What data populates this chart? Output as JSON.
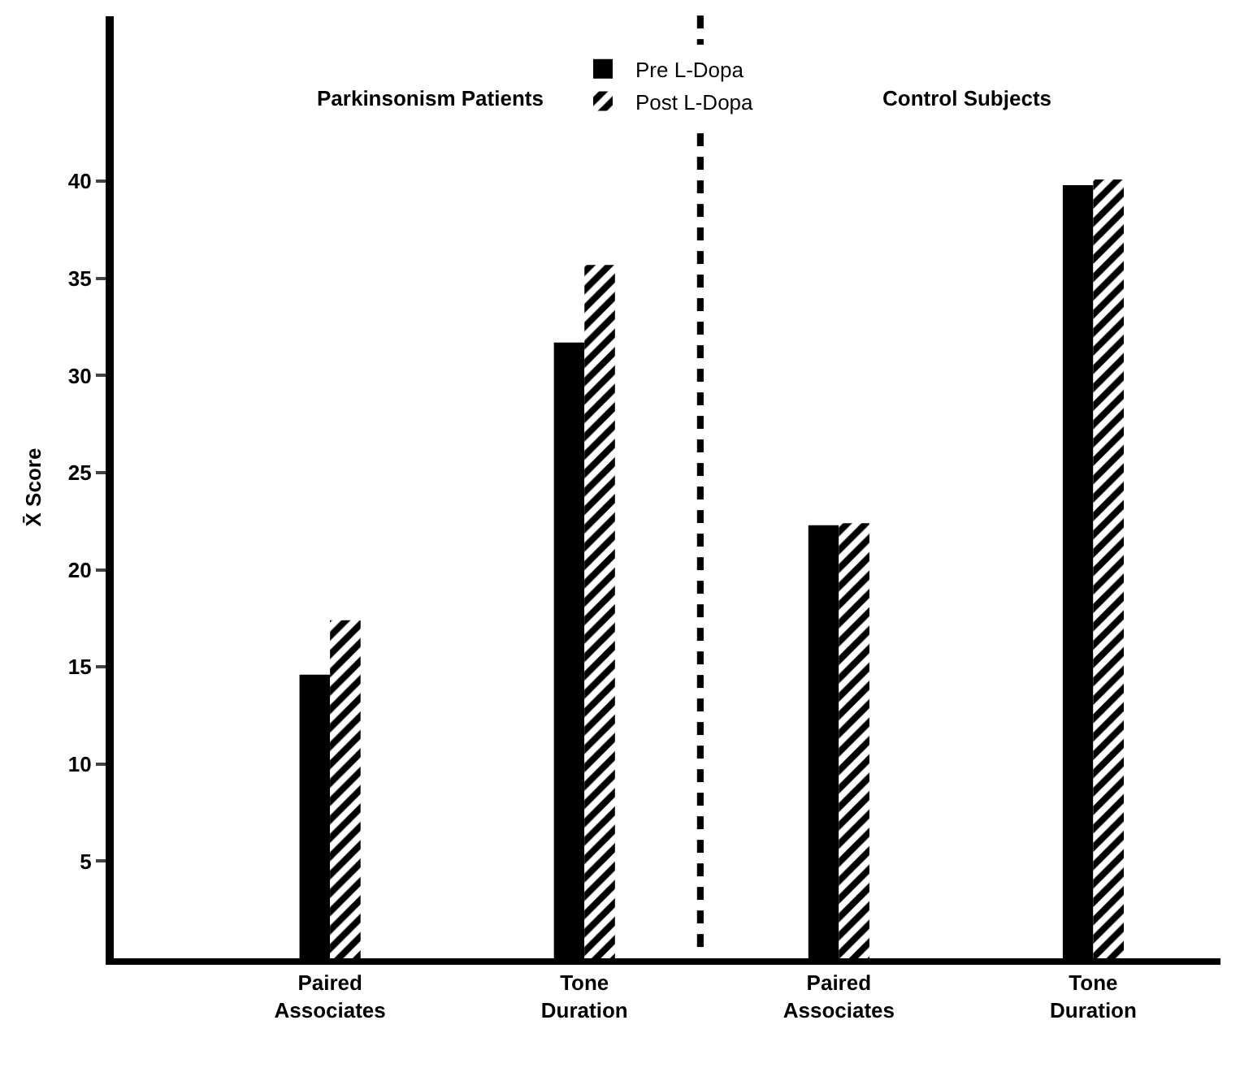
{
  "chart_data": {
    "type": "bar",
    "ylabel": "X̄ Score",
    "categories": [
      "Paired Associates",
      "Tone Duration",
      "Paired Associates",
      "Tone Duration"
    ],
    "series": [
      {
        "name": "Pre L-Dopa",
        "color": "#000000",
        "values": [
          14.6,
          31.7,
          22.3,
          39.8
        ]
      },
      {
        "name": "Post L-Dopa",
        "color": "#000000",
        "values": [
          17.4,
          35.7,
          22.4,
          40.1
        ]
      }
    ],
    "annotations": [
      "Parkinsonism Patients",
      "Control Subjects"
    ],
    "ylim": [
      0,
      48.5
    ],
    "yticks": [
      5,
      10,
      15,
      20,
      25,
      30,
      35,
      40
    ],
    "legend": "top"
  }
}
